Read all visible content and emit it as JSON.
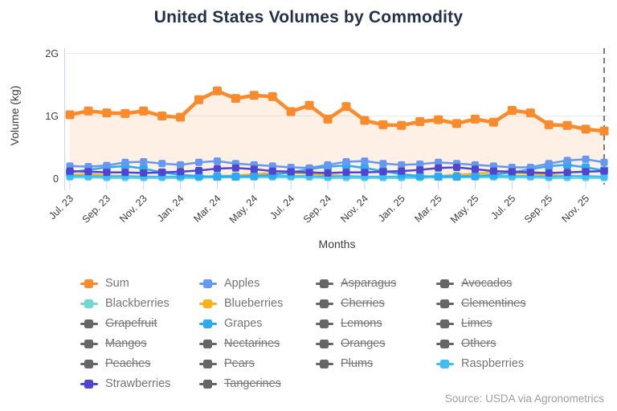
{
  "title": "United States Volumes by Commodity",
  "source": "Source: USDA via Agronometrics",
  "chart_data": {
    "type": "line",
    "title": "United States Volumes by Commodity",
    "xlabel": "Months",
    "ylabel": "Volume (kg)",
    "y_ticks": [
      "0",
      "1G",
      "2G"
    ],
    "ylim": [
      0,
      2
    ],
    "unit": "billions of kg (G)",
    "grid": "horizontal only",
    "legend_position": "bottom",
    "x_tick_every": 2,
    "end_marker": "dashed vertical line at last data point",
    "x": [
      "Jul. 23",
      "Aug. 23",
      "Sep. 23",
      "Oct. 23",
      "Nov. 23",
      "Dec. 23",
      "Jan. 24",
      "Feb. 24",
      "Mar. 24",
      "Apr. 24",
      "May. 24",
      "Jun. 24",
      "Jul. 24",
      "Aug. 24",
      "Sep. 24",
      "Oct. 24",
      "Nov. 24",
      "Dec. 24",
      "Jan. 25",
      "Feb. 25",
      "Mar. 25",
      "Apr. 25",
      "May. 25",
      "Jun. 25",
      "Jul. 25",
      "Aug. 25",
      "Sep. 25",
      "Oct. 25",
      "Nov. 25",
      "Dec. 25"
    ],
    "series": [
      {
        "name": "Sum",
        "color": "#F98B2C",
        "area_fill": true,
        "values": [
          1.02,
          1.08,
          1.05,
          1.04,
          1.08,
          1.0,
          0.98,
          1.26,
          1.4,
          1.28,
          1.33,
          1.31,
          1.07,
          1.17,
          0.95,
          1.15,
          0.93,
          0.86,
          0.85,
          0.91,
          0.94,
          0.88,
          0.95,
          0.9,
          1.09,
          1.05,
          0.86,
          0.85,
          0.79,
          0.76
        ]
      },
      {
        "name": "Apples",
        "color": "#6798F0",
        "values": [
          0.2,
          0.19,
          0.21,
          0.26,
          0.27,
          0.24,
          0.22,
          0.26,
          0.28,
          0.24,
          0.22,
          0.2,
          0.18,
          0.17,
          0.22,
          0.27,
          0.28,
          0.24,
          0.22,
          0.23,
          0.26,
          0.24,
          0.22,
          0.2,
          0.18,
          0.18,
          0.24,
          0.29,
          0.31,
          0.26
        ]
      },
      {
        "name": "Blackberries",
        "color": "#70D8D0",
        "values": [
          0.02,
          0.02,
          0.01,
          0.01,
          0.01,
          0.01,
          0.01,
          0.01,
          0.02,
          0.02,
          0.02,
          0.02,
          0.02,
          0.02,
          0.01,
          0.01,
          0.01,
          0.01,
          0.01,
          0.01,
          0.02,
          0.02,
          0.02,
          0.02,
          0.02,
          0.02,
          0.01,
          0.01,
          0.01,
          0.01
        ]
      },
      {
        "name": "Blueberries",
        "color": "#FBB118",
        "values": [
          0.06,
          0.07,
          0.05,
          0.04,
          0.03,
          0.02,
          0.02,
          0.03,
          0.04,
          0.05,
          0.07,
          0.09,
          0.09,
          0.08,
          0.06,
          0.04,
          0.03,
          0.02,
          0.02,
          0.03,
          0.04,
          0.06,
          0.08,
          0.1,
          0.09,
          0.08,
          0.06,
          0.04,
          0.03,
          0.02
        ]
      },
      {
        "name": "Grapes",
        "color": "#2EA9F4",
        "values": [
          0.1,
          0.14,
          0.18,
          0.2,
          0.16,
          0.1,
          0.06,
          0.04,
          0.03,
          0.03,
          0.04,
          0.06,
          0.1,
          0.15,
          0.19,
          0.21,
          0.17,
          0.12,
          0.07,
          0.04,
          0.03,
          0.03,
          0.04,
          0.06,
          0.1,
          0.15,
          0.2,
          0.22,
          0.18,
          0.13
        ]
      },
      {
        "name": "Raspberries",
        "color": "#3FBDF8",
        "values": [
          0.04,
          0.04,
          0.03,
          0.04,
          0.03,
          0.03,
          0.03,
          0.03,
          0.04,
          0.04,
          0.04,
          0.04,
          0.04,
          0.04,
          0.03,
          0.04,
          0.03,
          0.03,
          0.03,
          0.03,
          0.04,
          0.04,
          0.04,
          0.04,
          0.04,
          0.04,
          0.03,
          0.04,
          0.04,
          0.03
        ]
      },
      {
        "name": "Strawberries",
        "color": "#4E46CE",
        "values": [
          0.12,
          0.11,
          0.1,
          0.1,
          0.09,
          0.1,
          0.11,
          0.13,
          0.16,
          0.17,
          0.15,
          0.12,
          0.11,
          0.1,
          0.09,
          0.1,
          0.1,
          0.11,
          0.12,
          0.14,
          0.17,
          0.18,
          0.15,
          0.12,
          0.11,
          0.1,
          0.09,
          0.1,
          0.11,
          0.12
        ]
      }
    ]
  },
  "legend": {
    "disabled_color": "#666666",
    "items": [
      {
        "label": "Sum",
        "color": "#F98B2C",
        "enabled": true
      },
      {
        "label": "Apples",
        "color": "#6798F0",
        "enabled": true
      },
      {
        "label": "Asparagus",
        "color": "#666666",
        "enabled": false
      },
      {
        "label": "Avocados",
        "color": "#666666",
        "enabled": false
      },
      {
        "label": "Blackberries",
        "color": "#70D8D0",
        "enabled": true
      },
      {
        "label": "Blueberries",
        "color": "#FBB118",
        "enabled": true
      },
      {
        "label": "Cherries",
        "color": "#666666",
        "enabled": false
      },
      {
        "label": "Clementines",
        "color": "#666666",
        "enabled": false
      },
      {
        "label": "Grapefruit",
        "color": "#666666",
        "enabled": false
      },
      {
        "label": "Grapes",
        "color": "#2EA9F4",
        "enabled": true
      },
      {
        "label": "Lemons",
        "color": "#666666",
        "enabled": false
      },
      {
        "label": "Limes",
        "color": "#666666",
        "enabled": false
      },
      {
        "label": "Mangos",
        "color": "#666666",
        "enabled": false
      },
      {
        "label": "Nectarines",
        "color": "#666666",
        "enabled": false
      },
      {
        "label": "Oranges",
        "color": "#666666",
        "enabled": false
      },
      {
        "label": "Others",
        "color": "#666666",
        "enabled": false
      },
      {
        "label": "Peaches",
        "color": "#666666",
        "enabled": false
      },
      {
        "label": "Pears",
        "color": "#666666",
        "enabled": false
      },
      {
        "label": "Plums",
        "color": "#666666",
        "enabled": false
      },
      {
        "label": "Raspberries",
        "color": "#3FBDF8",
        "enabled": true
      },
      {
        "label": "Strawberries",
        "color": "#4E46CE",
        "enabled": true
      },
      {
        "label": "Tangerines",
        "color": "#666666",
        "enabled": false
      }
    ]
  }
}
